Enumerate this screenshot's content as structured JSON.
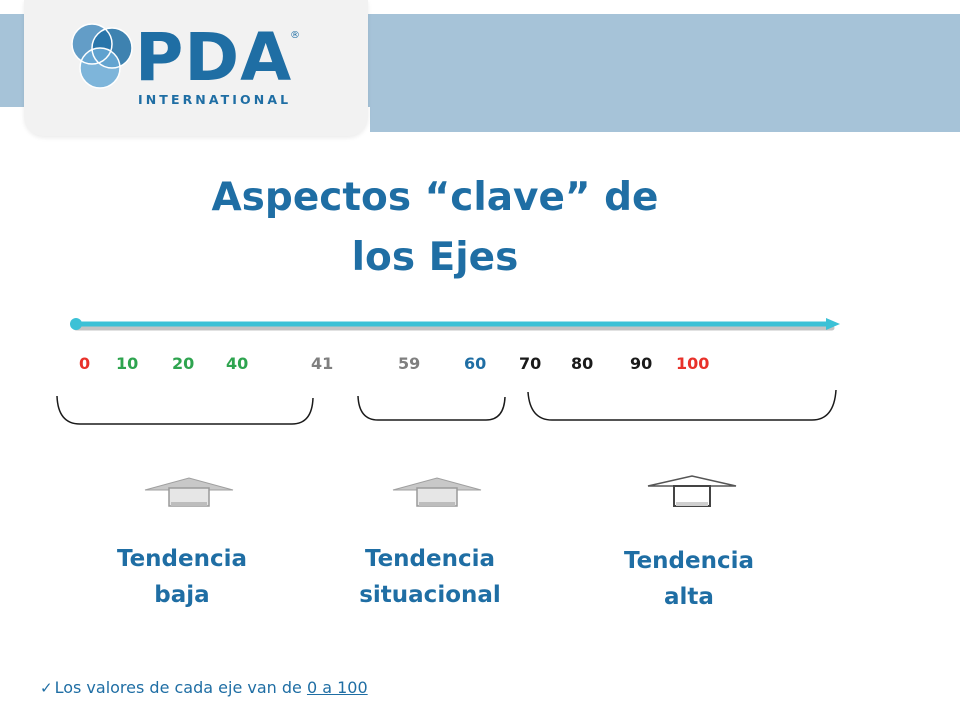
{
  "logo": {
    "brand": "PDA",
    "registered": "®",
    "subtitle": "INTERNATIONAL"
  },
  "title": {
    "line1": "Aspectos “clave” de",
    "line2": "los Ejes"
  },
  "scale": [
    {
      "label": "0",
      "color": "#e8312a"
    },
    {
      "label": "10",
      "color": "#2ea44f"
    },
    {
      "label": "20",
      "color": "#2ea44f"
    },
    {
      "label": "40",
      "color": "#2ea44f"
    },
    {
      "label": "41",
      "color": "#7f7f7f"
    },
    {
      "label": "59",
      "color": "#7f7f7f"
    },
    {
      "label": "60",
      "color": "#1f6ea4"
    },
    {
      "label": "70",
      "color": "#1a1a1a"
    },
    {
      "label": "80",
      "color": "#1a1a1a"
    },
    {
      "label": "90",
      "color": "#1a1a1a"
    },
    {
      "label": "100",
      "color": "#e8312a"
    }
  ],
  "trends": [
    {
      "line1": "Tendencia",
      "line2": "baja"
    },
    {
      "line1": "Tendencia",
      "line2": "situacional"
    },
    {
      "line1": "Tendencia",
      "line2": "alta"
    }
  ],
  "footnote": {
    "icon": "check-icon",
    "text": "Los valores de cada eje van de ",
    "range": "0 a 100"
  },
  "colors": {
    "brand_blue": "#1f6ea4",
    "axis_cyan": "#3cc1d6",
    "header_band": "#a6c3d8"
  }
}
